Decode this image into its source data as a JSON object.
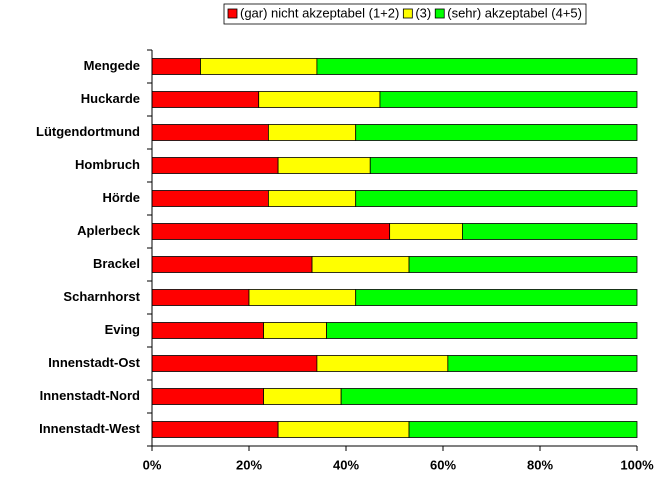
{
  "chart_data": {
    "type": "stacked-bar-horizontal",
    "categories": [
      "Mengede",
      "Huckarde",
      "Lütgendortmund",
      "Hombruch",
      "Hörde",
      "Aplerbeck",
      "Brackel",
      "Scharnhorst",
      "Eving",
      "Innenstadt-Ost",
      "Innenstadt-Nord",
      "Innenstadt-West"
    ],
    "series": [
      {
        "name": "(gar) nicht akzeptabel (1+2)",
        "color": "#ff0000",
        "values": [
          10,
          22,
          24,
          26,
          24,
          49,
          33,
          20,
          23,
          34,
          23,
          26
        ]
      },
      {
        "name": "(3)",
        "color": "#ffff00",
        "values": [
          24,
          25,
          18,
          19,
          18,
          15,
          20,
          22,
          13,
          27,
          16,
          27
        ]
      },
      {
        "name": "(sehr) akzeptabel (4+5)",
        "color": "#00ff00",
        "values": [
          66,
          53,
          58,
          55,
          58,
          36,
          47,
          58,
          64,
          39,
          61,
          47
        ]
      }
    ],
    "xlim": [
      0,
      100
    ],
    "xticks": [
      {
        "value": 0,
        "label": "0%"
      },
      {
        "value": 20,
        "label": "20%"
      },
      {
        "value": 40,
        "label": "40%"
      },
      {
        "value": 60,
        "label": "60%"
      },
      {
        "value": 80,
        "label": "80%"
      },
      {
        "value": 100,
        "label": "100%"
      }
    ],
    "legend": "top"
  }
}
